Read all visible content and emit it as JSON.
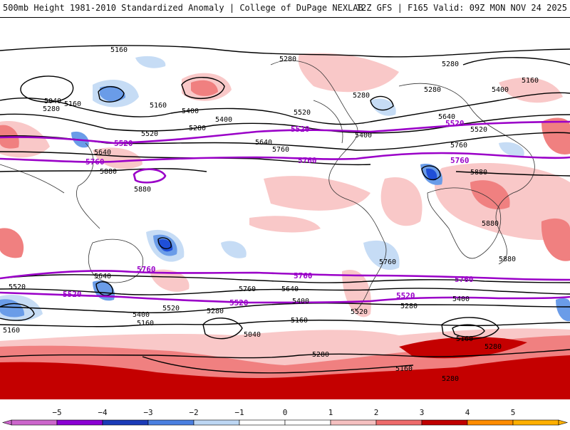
{
  "header": {
    "left_title": "500mb Height 1981-2010 Standardized Anomaly | College of DuPage NEXLAB",
    "right_title": "12Z GFS | F165 Valid: 09Z MON NOV 24 2025"
  },
  "contour_labels": {
    "black": [
      "5160",
      "5280",
      "5040",
      "5280",
      "5160",
      "5160",
      "5400",
      "5280",
      "5400",
      "5520",
      "5280",
      "5400",
      "5280",
      "5280",
      "5160",
      "5400",
      "5520",
      "5640",
      "5520",
      "5640",
      "5760",
      "5880",
      "5880",
      "5640",
      "5760",
      "5880",
      "5880",
      "5880",
      "5640",
      "5760",
      "5520",
      "5760",
      "5640",
      "5400",
      "5520",
      "5280",
      "5400",
      "5160",
      "5280",
      "5400",
      "5520",
      "5160",
      "5040",
      "5160",
      "5280",
      "5160",
      "5280",
      "5160",
      "5280"
    ],
    "purple": [
      "5520",
      "5760",
      "5520",
      "5520",
      "5760",
      "5760",
      "5520",
      "5760",
      "5760",
      "5520",
      "5760",
      "5520"
    ]
  },
  "colors": {
    "anom_pos_weak": "#f9c8c8",
    "anom_pos_mid": "#f08080",
    "anom_pos_strong": "#c40000",
    "anom_neg_weak": "#c6dcf5",
    "anom_neg_mid": "#6a9ce8",
    "anom_neg_strong": "#1f4fd8",
    "contour_black": "#000000",
    "contour_purple": "#9a00c8"
  },
  "colorbar": {
    "ticks": [
      "−5",
      "−4",
      "−3",
      "−2",
      "−1",
      "0",
      "1",
      "2",
      "3",
      "4",
      "5"
    ],
    "segments": [
      "#cc66cc",
      "#8a00d4",
      "#1a3bb8",
      "#4a7fe0",
      "#bcd6f3",
      "#ffffff",
      "#ffffff",
      "#f5c0c0",
      "#ee6b6b",
      "#c00000",
      "#ff8c00",
      "#ffb000"
    ]
  }
}
